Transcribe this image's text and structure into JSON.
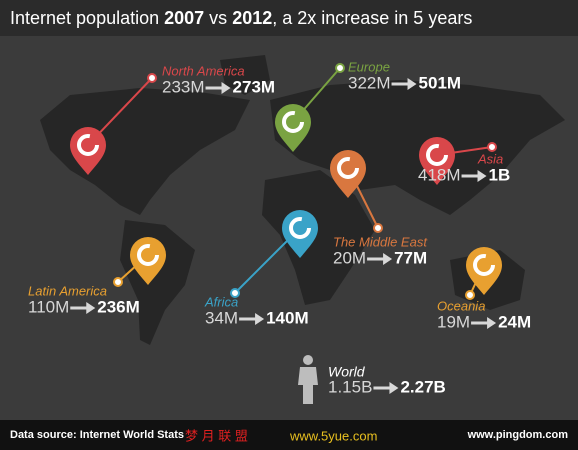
{
  "header": {
    "title_parts": [
      "Internet population ",
      "2007",
      " vs ",
      "2012",
      ", a 2x increase in 5 years"
    ]
  },
  "regions": [
    {
      "name": "North America",
      "from": "233M",
      "to": "273M",
      "color": "#d9474a"
    },
    {
      "name": "Europe",
      "from": "322M",
      "to": "501M",
      "color": "#7aa342"
    },
    {
      "name": "Asia",
      "from": "418M",
      "to": "1B",
      "color": "#d9474a"
    },
    {
      "name": "The Middle East",
      "from": "20M",
      "to": "77M",
      "color": "#d9773f"
    },
    {
      "name": "Latin America",
      "from": "110M",
      "to": "236M",
      "color": "#e8a030"
    },
    {
      "name": "Africa",
      "from": "34M",
      "to": "140M",
      "color": "#3aa3c8"
    },
    {
      "name": "Oceania",
      "from": "19M",
      "to": "24M",
      "color": "#e8a030"
    }
  ],
  "world": {
    "name": "World",
    "from": "1.15B",
    "to": "2.27B"
  },
  "footer": {
    "source": "Data source: Internet World Stats",
    "watermark_cn": "梦 月 联 盟",
    "watermark_url": "www.5yue.com",
    "site": "www.pingdom.com"
  }
}
